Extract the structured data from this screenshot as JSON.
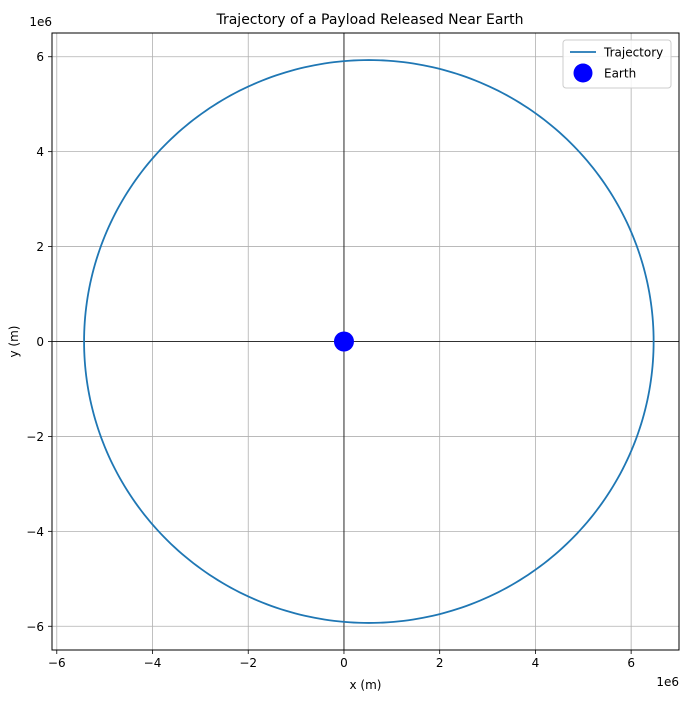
{
  "chart_data": {
    "type": "line",
    "title": "Trajectory of a Payload Released Near Earth",
    "xlabel": "x (m)",
    "ylabel": "y (m)",
    "x_offset_label": "1e6",
    "y_offset_label": "1e6",
    "xlim": [
      -6.1,
      7.0
    ],
    "ylim": [
      -6.5,
      6.5
    ],
    "x_ticks": [
      -6,
      -4,
      -2,
      0,
      2,
      4,
      6
    ],
    "y_ticks": [
      -6,
      -4,
      -2,
      0,
      2,
      4,
      6
    ],
    "x_tick_labels": [
      "−6",
      "−4",
      "−2",
      "0",
      "2",
      "4",
      "6"
    ],
    "y_tick_labels": [
      "−6",
      "−4",
      "−2",
      "0",
      "2",
      "4",
      "6"
    ],
    "grid": true,
    "zero_lines": true,
    "legend": {
      "position": "top-right",
      "entries": [
        "Trajectory",
        "Earth"
      ]
    },
    "series": [
      {
        "name": "Trajectory",
        "kind": "ellipse-orbit",
        "color": "#1f77b4",
        "center": [
          0.52,
          0.0
        ],
        "semi_axis_x": 5.95,
        "semi_axis_y": 5.93,
        "extremes": {
          "x_min": -5.43,
          "x_max": 6.47,
          "y_min": -5.93,
          "y_max": 5.93
        }
      },
      {
        "name": "Earth",
        "kind": "point",
        "color": "#0000ff",
        "x": 0.0,
        "y": 0.0
      }
    ]
  }
}
